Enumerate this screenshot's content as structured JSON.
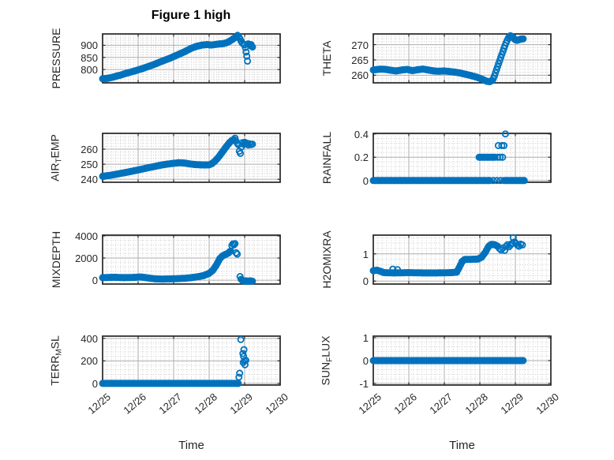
{
  "figure": {
    "title": "Figure 1 high"
  },
  "x_axis": {
    "label": "Time",
    "tick_labels": [
      "12/25",
      "12/26",
      "12/27",
      "12/28",
      "12/29",
      "12/30"
    ],
    "lim": [
      0,
      5
    ],
    "minor_step": 0.125
  },
  "colors": {
    "marker": "#0072BD",
    "axis": "#262626",
    "grid_major": "#adadad",
    "grid_minor": "#cccccc",
    "background": "#ffffff"
  },
  "chart_data": [
    {
      "id": "pressure",
      "type": "scatter",
      "ylabel_parts": [
        {
          "text": "PRESSURE"
        }
      ],
      "ylim": [
        745,
        947
      ],
      "yticks": [
        {
          "v": 800,
          "label": "800"
        },
        {
          "v": 850,
          "label": "850"
        },
        {
          "v": 900,
          "label": "900"
        }
      ],
      "y_minor_step": 10,
      "dense": [
        [
          [
            0,
            762
          ],
          [
            0.15,
            764
          ],
          [
            0.3,
            769
          ],
          [
            0.5,
            777
          ],
          [
            0.7,
            786
          ],
          [
            0.9,
            794
          ],
          [
            1.1,
            803
          ],
          [
            1.3,
            813
          ],
          [
            1.5,
            824
          ],
          [
            1.7,
            836
          ],
          [
            1.9,
            847
          ],
          [
            2.1,
            860
          ],
          [
            2.3,
            873
          ],
          [
            2.5,
            888
          ],
          [
            2.65,
            896
          ],
          [
            2.8,
            901
          ],
          [
            2.95,
            903
          ],
          [
            3.05,
            901
          ],
          [
            3.15,
            903
          ],
          [
            3.3,
            906
          ],
          [
            3.4,
            907
          ],
          [
            3.5,
            911
          ],
          [
            3.6,
            919
          ],
          [
            3.7,
            929
          ],
          [
            3.78,
            936
          ]
        ]
      ],
      "points": [
        [
          3.8,
          941
        ],
        [
          3.84,
          934
        ],
        [
          3.87,
          926
        ],
        [
          3.9,
          917
        ],
        [
          3.93,
          910
        ],
        [
          3.97,
          905
        ],
        [
          4.0,
          902
        ],
        [
          4.02,
          891
        ],
        [
          4.04,
          872
        ],
        [
          4.06,
          855
        ],
        [
          4.08,
          835
        ],
        [
          4.1,
          906
        ],
        [
          4.13,
          903
        ],
        [
          4.16,
          899
        ],
        [
          4.18,
          903
        ],
        [
          4.2,
          897
        ],
        [
          4.22,
          893
        ]
      ]
    },
    {
      "id": "theta",
      "type": "scatter",
      "ylabel_parts": [
        {
          "text": "THETA"
        }
      ],
      "ylim": [
        257.5,
        273.5
      ],
      "yticks": [
        {
          "v": 260,
          "label": "260"
        },
        {
          "v": 265,
          "label": "265"
        },
        {
          "v": 270,
          "label": "270"
        }
      ],
      "y_minor_step": 1,
      "dense": [
        [
          [
            0,
            261.7
          ],
          [
            0.2,
            262
          ],
          [
            0.35,
            261.9
          ],
          [
            0.5,
            261.6
          ],
          [
            0.65,
            261.4
          ],
          [
            0.8,
            261.7
          ],
          [
            0.95,
            261.9
          ],
          [
            1.1,
            261.5
          ],
          [
            1.25,
            261.8
          ],
          [
            1.4,
            262
          ],
          [
            1.55,
            261.7
          ],
          [
            1.7,
            261.4
          ],
          [
            1.85,
            261.3
          ],
          [
            2.0,
            261.4
          ],
          [
            2.15,
            261.2
          ],
          [
            2.3,
            261.0
          ],
          [
            2.45,
            260.7
          ],
          [
            2.6,
            260.3
          ],
          [
            2.75,
            259.9
          ],
          [
            2.9,
            259.4
          ],
          [
            3.0,
            259.0
          ],
          [
            3.1,
            258.5
          ],
          [
            3.2,
            258.0
          ],
          [
            3.28,
            257.9
          ],
          [
            3.35,
            258.3
          ]
        ],
        [
          [
            3.88,
            272.8
          ],
          [
            3.92,
            272.5
          ],
          [
            3.96,
            272.0
          ],
          [
            4.0,
            271.6
          ],
          [
            4.05,
            271.4
          ],
          [
            4.1,
            271.6
          ],
          [
            4.15,
            271.8
          ],
          [
            4.22,
            271.9
          ]
        ]
      ],
      "points": [
        [
          3.38,
          258.9
        ],
        [
          3.41,
          259.8
        ],
        [
          3.44,
          260.8
        ],
        [
          3.47,
          261.8
        ],
        [
          3.5,
          262.8
        ],
        [
          3.53,
          263.8
        ],
        [
          3.56,
          264.8
        ],
        [
          3.59,
          265.8
        ],
        [
          3.62,
          266.8
        ],
        [
          3.65,
          267.8
        ],
        [
          3.68,
          268.8
        ],
        [
          3.71,
          269.7
        ],
        [
          3.74,
          270.6
        ],
        [
          3.77,
          271.4
        ],
        [
          3.8,
          272.1
        ],
        [
          3.83,
          272.6
        ],
        [
          3.86,
          272.9
        ]
      ]
    },
    {
      "id": "airtemp",
      "type": "scatter",
      "ylabel_parts": [
        {
          "text": "AIR"
        },
        {
          "sub": "T"
        },
        {
          "text": "EMP"
        }
      ],
      "ylim": [
        238,
        270.5
      ],
      "yticks": [
        {
          "v": 240,
          "label": "240"
        },
        {
          "v": 250,
          "label": "250"
        },
        {
          "v": 260,
          "label": "260"
        }
      ],
      "y_minor_step": 2,
      "dense": [
        [
          [
            0,
            242
          ],
          [
            0.2,
            242.6
          ],
          [
            0.4,
            243.4
          ],
          [
            0.6,
            244.3
          ],
          [
            0.8,
            245.2
          ],
          [
            1.0,
            246.2
          ],
          [
            1.2,
            247.2
          ],
          [
            1.4,
            248.2
          ],
          [
            1.6,
            249.2
          ],
          [
            1.8,
            250
          ],
          [
            2.0,
            250.6
          ],
          [
            2.15,
            251
          ],
          [
            2.3,
            250.8
          ],
          [
            2.45,
            250.2
          ],
          [
            2.6,
            249.8
          ],
          [
            2.75,
            249.6
          ],
          [
            2.9,
            249.5
          ],
          [
            3.0,
            249.6
          ],
          [
            3.08,
            250.4
          ],
          [
            3.16,
            252
          ],
          [
            3.24,
            254
          ],
          [
            3.32,
            256.4
          ],
          [
            3.4,
            259
          ],
          [
            3.48,
            261.6
          ],
          [
            3.56,
            264
          ],
          [
            3.64,
            265.8
          ],
          [
            3.7,
            266.3
          ]
        ]
      ],
      "points": [
        [
          3.73,
          267.3
        ],
        [
          3.76,
          265.2
        ],
        [
          3.79,
          264
        ],
        [
          3.82,
          263
        ],
        [
          3.85,
          258.6
        ],
        [
          3.88,
          257.2
        ],
        [
          3.91,
          261.5
        ],
        [
          3.94,
          264.3
        ],
        [
          3.97,
          263.2
        ],
        [
          4.0,
          264.6
        ],
        [
          4.03,
          263.4
        ],
        [
          4.06,
          264
        ],
        [
          4.1,
          262.8
        ],
        [
          4.14,
          263.6
        ],
        [
          4.18,
          263
        ],
        [
          4.22,
          263.3
        ]
      ]
    },
    {
      "id": "rainfall",
      "type": "scatter",
      "ylabel_parts": [
        {
          "text": "RAINFALL"
        }
      ],
      "ylim": [
        -0.015,
        0.405
      ],
      "yticks": [
        {
          "v": 0,
          "label": "0"
        },
        {
          "v": 0.2,
          "label": "0.2"
        },
        {
          "v": 0.4,
          "label": "0.4"
        }
      ],
      "y_minor_step": 0.04,
      "dense": [
        [
          [
            0,
            0
          ],
          [
            3.28,
            0
          ]
        ],
        [
          [
            3.68,
            0
          ],
          [
            4.25,
            0
          ]
        ],
        [
          [
            2.98,
            0.2
          ],
          [
            3.42,
            0.2
          ]
        ]
      ],
      "points": [
        [
          3.38,
          0
        ],
        [
          3.48,
          0
        ],
        [
          3.58,
          0
        ],
        [
          3.5,
          0.2
        ],
        [
          3.57,
          0.2
        ],
        [
          3.64,
          0.2
        ],
        [
          3.52,
          0.3
        ],
        [
          3.62,
          0.3
        ],
        [
          3.68,
          0.3
        ],
        [
          3.72,
          0.4
        ]
      ]
    },
    {
      "id": "mixdepth",
      "type": "scatter",
      "ylabel_parts": [
        {
          "text": "MIXDEPTH"
        }
      ],
      "ylim": [
        -350,
        4070
      ],
      "yticks": [
        {
          "v": 0,
          "label": "0"
        },
        {
          "v": 2000,
          "label": "2000"
        },
        {
          "v": 4000,
          "label": "4000"
        }
      ],
      "y_minor_step": 400,
      "dense": [
        [
          [
            0,
            230
          ],
          [
            0.3,
            260
          ],
          [
            0.6,
            230
          ],
          [
            0.9,
            250
          ],
          [
            1.05,
            290
          ],
          [
            1.2,
            240
          ],
          [
            1.35,
            170
          ],
          [
            1.5,
            120
          ],
          [
            1.7,
            100
          ],
          [
            1.9,
            120
          ],
          [
            2.1,
            140
          ],
          [
            2.3,
            170
          ],
          [
            2.5,
            230
          ],
          [
            2.7,
            320
          ],
          [
            2.85,
            420
          ],
          [
            3.0,
            620
          ],
          [
            3.1,
            880
          ],
          [
            3.2,
            1350
          ],
          [
            3.3,
            1950
          ],
          [
            3.38,
            2200
          ],
          [
            3.46,
            2330
          ],
          [
            3.54,
            2450
          ],
          [
            3.6,
            2620
          ]
        ],
        [
          [
            3.9,
            80
          ],
          [
            3.95,
            -40
          ],
          [
            4.0,
            -90
          ],
          [
            4.05,
            -60
          ],
          [
            4.1,
            -110
          ],
          [
            4.15,
            -60
          ],
          [
            4.22,
            -90
          ]
        ]
      ],
      "points": [
        [
          3.64,
          3120
        ],
        [
          3.67,
          3280
        ],
        [
          3.7,
          3200
        ],
        [
          3.73,
          3300
        ],
        [
          3.76,
          2480
        ],
        [
          3.79,
          2350
        ],
        [
          3.87,
          330
        ]
      ]
    },
    {
      "id": "h2omixra",
      "type": "scatter",
      "ylabel_parts": [
        {
          "text": "H2OMIXRA"
        }
      ],
      "ylim": [
        -0.11,
        1.69
      ],
      "yticks": [
        {
          "v": 0,
          "label": "0"
        },
        {
          "v": 1,
          "label": "1"
        }
      ],
      "y_minor_step": 0.2,
      "dense": [
        [
          [
            0,
            0.38
          ],
          [
            0.1,
            0.4
          ],
          [
            0.2,
            0.36
          ],
          [
            0.3,
            0.31
          ],
          [
            0.6,
            0.3
          ],
          [
            1.0,
            0.31
          ],
          [
            1.4,
            0.3
          ],
          [
            1.8,
            0.3
          ],
          [
            2.2,
            0.31
          ],
          [
            2.35,
            0.33
          ],
          [
            2.42,
            0.5
          ],
          [
            2.5,
            0.72
          ],
          [
            2.58,
            0.8
          ],
          [
            2.75,
            0.8
          ],
          [
            2.95,
            0.81
          ],
          [
            3.05,
            0.88
          ],
          [
            3.15,
            1.05
          ],
          [
            3.25,
            1.28
          ],
          [
            3.32,
            1.35
          ],
          [
            3.42,
            1.34
          ],
          [
            3.5,
            1.28
          ]
        ]
      ],
      "points": [
        [
          0.55,
          0.44
        ],
        [
          0.68,
          0.42
        ],
        [
          3.55,
          1.2
        ],
        [
          3.6,
          1.14
        ],
        [
          3.65,
          1.22
        ],
        [
          3.7,
          1.13
        ],
        [
          3.74,
          1.28
        ],
        [
          3.78,
          1.34
        ],
        [
          3.82,
          1.26
        ],
        [
          3.86,
          1.32
        ],
        [
          3.9,
          1.38
        ],
        [
          3.94,
          1.6
        ],
        [
          3.98,
          1.44
        ],
        [
          4.02,
          1.38
        ],
        [
          4.06,
          1.32
        ],
        [
          4.1,
          1.28
        ],
        [
          4.15,
          1.36
        ],
        [
          4.2,
          1.33
        ]
      ]
    },
    {
      "id": "terrmsl",
      "type": "scatter",
      "ylabel_parts": [
        {
          "text": "TERR"
        },
        {
          "sub": "M"
        },
        {
          "text": "SL"
        }
      ],
      "ylim": [
        -15,
        420
      ],
      "yticks": [
        {
          "v": 0,
          "label": "0"
        },
        {
          "v": 200,
          "label": "200"
        },
        {
          "v": 400,
          "label": "400"
        }
      ],
      "y_minor_step": 40,
      "dense": [
        [
          [
            0,
            0
          ],
          [
            3.82,
            0
          ]
        ]
      ],
      "points": [
        [
          3.84,
          55
        ],
        [
          3.86,
          90
        ],
        [
          3.89,
          390
        ],
        [
          3.95,
          265
        ],
        [
          3.96,
          185
        ],
        [
          3.97,
          240
        ],
        [
          3.98,
          300
        ],
        [
          3.99,
          200
        ],
        [
          4.01,
          165
        ],
        [
          4.03,
          205
        ]
      ]
    },
    {
      "id": "sunflux",
      "type": "scatter",
      "ylabel_parts": [
        {
          "text": "SUN"
        },
        {
          "sub": "F"
        },
        {
          "text": "LUX"
        }
      ],
      "ylim": [
        -1.07,
        1.07
      ],
      "yticks": [
        {
          "v": -1,
          "label": "-1"
        },
        {
          "v": 0,
          "label": "0"
        },
        {
          "v": 1,
          "label": "1"
        }
      ],
      "y_minor_step": 0.2,
      "dense": [
        [
          [
            0,
            0
          ],
          [
            4.22,
            0
          ]
        ]
      ],
      "points": []
    }
  ]
}
